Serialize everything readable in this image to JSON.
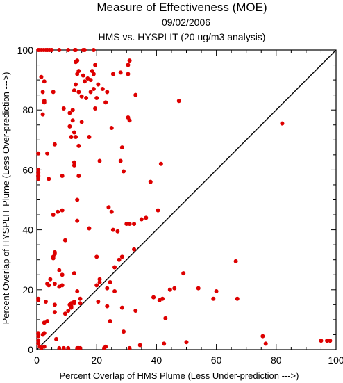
{
  "chart_data": {
    "type": "scatter",
    "title": "Measure of Effectiveness (MOE)",
    "subtitle_date": "09/02/2006",
    "subtitle_comparison": "HMS vs. HYSPLIT  (20 ug/m3 analysis)",
    "xlabel": "Percent Overlap of HMS Plume (Less Under-prediction --->)",
    "ylabel": "Percent Overlap of HYSPLIT Plume (Less Over-prediction --->)",
    "xlim": [
      0,
      100
    ],
    "ylim": [
      0,
      100
    ],
    "x_ticks": [
      0,
      20,
      40,
      60,
      80,
      100
    ],
    "y_ticks": [
      0,
      20,
      40,
      60,
      80,
      100
    ],
    "grid": false,
    "reference_line": "y = x",
    "point_color": "#dd0000",
    "points": [
      [
        0.5,
        100
      ],
      [
        1,
        100
      ],
      [
        1.6,
        100
      ],
      [
        2.3,
        100
      ],
      [
        3,
        100
      ],
      [
        3.6,
        100
      ],
      [
        4.3,
        100
      ],
      [
        5,
        100
      ],
      [
        7.5,
        100
      ],
      [
        10.5,
        100
      ],
      [
        12.7,
        100
      ],
      [
        13,
        100
      ],
      [
        15.5,
        100
      ],
      [
        16,
        100
      ],
      [
        19,
        100
      ],
      [
        25.5,
        92
      ],
      [
        28,
        92.5
      ],
      [
        30.5,
        95
      ],
      [
        30.5,
        92
      ],
      [
        31,
        96.5
      ],
      [
        1.5,
        91
      ],
      [
        2.5,
        89.5
      ],
      [
        5.5,
        86
      ],
      [
        2,
        86
      ],
      [
        2.5,
        83
      ],
      [
        2.5,
        82.5
      ],
      [
        2,
        78.5
      ],
      [
        13,
        96
      ],
      [
        13.5,
        96.5
      ],
      [
        13.5,
        92
      ],
      [
        14,
        93
      ],
      [
        15.5,
        91.5
      ],
      [
        16,
        89.5
      ],
      [
        17,
        90.5
      ],
      [
        18,
        90
      ],
      [
        18.5,
        93
      ],
      [
        19,
        92
      ],
      [
        19.5,
        95
      ],
      [
        13,
        88.5
      ],
      [
        12.5,
        86.5
      ],
      [
        14,
        86
      ],
      [
        15,
        84.5
      ],
      [
        16.5,
        84
      ],
      [
        18,
        86
      ],
      [
        19,
        87
      ],
      [
        20,
        84
      ],
      [
        20.5,
        88.5
      ],
      [
        19.5,
        80.5
      ],
      [
        22,
        87
      ],
      [
        23.5,
        86
      ],
      [
        23,
        82.5
      ],
      [
        9,
        80.5
      ],
      [
        11,
        79
      ],
      [
        12,
        80
      ],
      [
        12,
        76.5
      ],
      [
        11,
        74.5
      ],
      [
        12.5,
        72.5
      ],
      [
        11.5,
        71
      ],
      [
        13,
        71
      ],
      [
        14,
        68
      ],
      [
        15,
        76
      ],
      [
        17.5,
        71
      ],
      [
        25,
        74
      ],
      [
        28.5,
        67.5
      ],
      [
        30.5,
        77.5
      ],
      [
        31,
        76.5
      ],
      [
        33,
        85
      ],
      [
        47.5,
        83
      ],
      [
        6,
        68.5
      ],
      [
        3.5,
        65.5
      ],
      [
        0.5,
        65.5
      ],
      [
        0.5,
        60
      ],
      [
        0.5,
        59
      ],
      [
        0.5,
        58
      ],
      [
        0.5,
        58
      ],
      [
        0.5,
        57
      ],
      [
        4,
        57
      ],
      [
        8.5,
        58
      ],
      [
        12.5,
        62.5
      ],
      [
        12.5,
        61.5
      ],
      [
        14,
        58
      ],
      [
        21,
        63
      ],
      [
        28,
        63
      ],
      [
        29,
        59.5
      ],
      [
        38,
        56
      ],
      [
        41.5,
        62
      ],
      [
        82,
        75.5
      ],
      [
        13.5,
        50
      ],
      [
        8.5,
        46.5
      ],
      [
        7,
        46
      ],
      [
        5.5,
        45
      ],
      [
        13.5,
        43
      ],
      [
        17.5,
        40.5
      ],
      [
        24,
        47.5
      ],
      [
        25,
        46
      ],
      [
        25.5,
        40
      ],
      [
        27,
        39.5
      ],
      [
        30,
        42
      ],
      [
        31,
        42
      ],
      [
        32.5,
        42
      ],
      [
        35,
        43.5
      ],
      [
        36.5,
        44
      ],
      [
        40.5,
        46.5
      ],
      [
        9.5,
        36.5
      ],
      [
        6,
        32.5
      ],
      [
        6,
        32
      ],
      [
        5.5,
        31
      ],
      [
        5.5,
        30.5
      ],
      [
        7.5,
        26.5
      ],
      [
        8.5,
        25
      ],
      [
        12.5,
        25.5
      ],
      [
        20,
        31
      ],
      [
        27.5,
        30
      ],
      [
        32.5,
        33.5
      ],
      [
        26,
        27.5
      ],
      [
        28.5,
        31
      ],
      [
        4.5,
        23.5
      ],
      [
        3.5,
        22
      ],
      [
        4,
        21.5
      ],
      [
        6,
        22
      ],
      [
        7.5,
        21
      ],
      [
        8.5,
        21.5
      ],
      [
        13.5,
        19.5
      ],
      [
        20,
        21.5
      ],
      [
        21,
        23.5
      ],
      [
        21,
        22.5
      ],
      [
        23.5,
        20.5
      ],
      [
        24.5,
        22.5
      ],
      [
        26,
        19.5
      ],
      [
        0.5,
        17
      ],
      [
        0.5,
        16.5
      ],
      [
        3,
        16
      ],
      [
        6,
        15
      ],
      [
        6,
        12.5
      ],
      [
        10.5,
        13
      ],
      [
        11,
        15
      ],
      [
        11.5,
        15.5
      ],
      [
        11.5,
        14.5
      ],
      [
        11.5,
        14
      ],
      [
        12.5,
        16
      ],
      [
        12.5,
        15.5
      ],
      [
        14.5,
        17
      ],
      [
        14.5,
        15.5
      ],
      [
        2.5,
        9
      ],
      [
        3.5,
        9.5
      ],
      [
        0.5,
        5.5
      ],
      [
        0.5,
        4.5
      ],
      [
        0.5,
        3
      ],
      [
        0.5,
        2
      ],
      [
        1,
        1
      ],
      [
        1.5,
        0.5
      ],
      [
        2.5,
        1
      ],
      [
        2,
        5
      ],
      [
        2.5,
        5.5
      ],
      [
        6.5,
        3.5
      ],
      [
        7.5,
        0.5
      ],
      [
        9,
        0.5
      ],
      [
        9.5,
        12
      ],
      [
        10.5,
        0.5
      ],
      [
        13.5,
        0.5
      ],
      [
        14,
        0.5
      ],
      [
        14.5,
        0.5
      ],
      [
        20.5,
        16
      ],
      [
        22.5,
        0.5
      ],
      [
        23,
        1
      ],
      [
        23.5,
        14.5
      ],
      [
        24.5,
        9.5
      ],
      [
        29,
        6
      ],
      [
        31,
        0.5
      ],
      [
        28.5,
        14
      ],
      [
        33,
        13
      ],
      [
        34.5,
        1.5
      ],
      [
        39,
        17.5
      ],
      [
        41,
        16.5
      ],
      [
        42,
        17
      ],
      [
        42.5,
        2
      ],
      [
        43,
        10.5
      ],
      [
        44.5,
        20
      ],
      [
        46,
        20.5
      ],
      [
        49,
        25.5
      ],
      [
        50,
        2.5
      ],
      [
        54,
        20.5
      ],
      [
        59,
        17
      ],
      [
        60,
        19.5
      ],
      [
        66.5,
        29.5
      ],
      [
        67,
        17
      ],
      [
        75.5,
        4.5
      ],
      [
        76.5,
        2
      ],
      [
        95,
        3
      ],
      [
        97,
        3
      ],
      [
        98,
        3
      ]
    ]
  }
}
